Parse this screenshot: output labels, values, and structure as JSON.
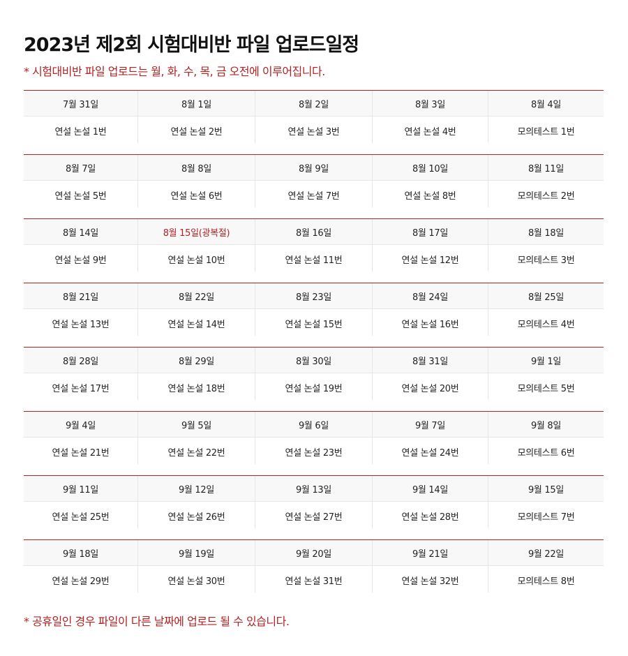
{
  "title": "2023년 제2회 시험대비반 파일 업로드일정",
  "subtitle": "* 시험대비반 파일 업로드는 월, 화, 수, 목, 금 오전에 이루어집니다.",
  "footnote": "* 공휴일인 경우 파일이 다른 날짜에 업로드 될 수 있습니다.",
  "colors": {
    "accent": "#b22222",
    "header_bg": "#f8f8f8",
    "border": "#e6e6e6"
  },
  "weeks": [
    {
      "dates": [
        "7월 31일",
        "8월 1일",
        "8월 2일",
        "8월 3일",
        "8월 4일"
      ],
      "items": [
        "연설 논설 1번",
        "연설 논설 2번",
        "연설 논설 3번",
        "연설 논설 4번",
        "모의테스트 1번"
      ]
    },
    {
      "dates": [
        "8월 7일",
        "8월 8일",
        "8월 9일",
        "8월 10일",
        "8월 11일"
      ],
      "items": [
        "연설 논설 5번",
        "연설 논설 6번",
        "연설 논설 7번",
        "연설 논설 8번",
        "모의테스트 2번"
      ]
    },
    {
      "dates": [
        "8월 14일",
        "8월 15일(광복절)",
        "8월 16일",
        "8월 17일",
        "8월 18일"
      ],
      "items": [
        "연설 논설 9번",
        "연설 논설 10번",
        "연설 논설 11번",
        "연설 논설 12번",
        "모의테스트 3번"
      ]
    },
    {
      "dates": [
        "8월 21일",
        "8월 22일",
        "8월 23일",
        "8월 24일",
        "8월 25일"
      ],
      "items": [
        "연설 논설 13번",
        "연설 논설 14번",
        "연설 논설 15번",
        "연설 논설 16번",
        "모의테스트 4번"
      ]
    },
    {
      "dates": [
        "8월 28일",
        "8월 29일",
        "8월 30일",
        "8월 31일",
        "9월 1일"
      ],
      "items": [
        "연설 논설 17번",
        "연설 논설 18번",
        "연설 논설 19번",
        "연설 논설 20번",
        "모의테스트 5번"
      ]
    },
    {
      "dates": [
        "9월 4일",
        "9월 5일",
        "9월 6일",
        "9월 7일",
        "9월 8일"
      ],
      "items": [
        "연설 논설 21번",
        "연설 논설 22번",
        "연설 논설 23번",
        "연설 논설 24번",
        "모의테스트 6번"
      ]
    },
    {
      "dates": [
        "9월 11일",
        "9월 12일",
        "9월 13일",
        "9월 14일",
        "9월 15일"
      ],
      "items": [
        "연설 논설 25번",
        "연설 논설 26번",
        "연설 논설 27번",
        "연설 논설 28번",
        "모의테스트 7번"
      ]
    },
    {
      "dates": [
        "9월 18일",
        "9월 19일",
        "9월 20일",
        "9월 21일",
        "9월 22일"
      ],
      "items": [
        "연설 논설 29번",
        "연설 논설 30번",
        "연설 논설 31번",
        "연설 논설 32번",
        "모의테스트 8번"
      ]
    }
  ]
}
